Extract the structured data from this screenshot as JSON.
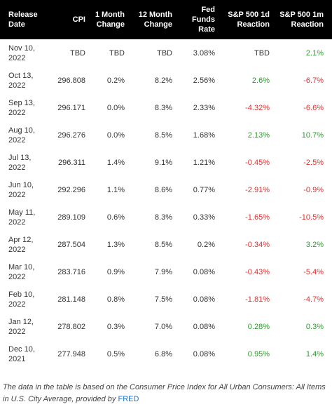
{
  "table": {
    "headers": {
      "release_date": "Release\nDate",
      "cpi": "CPI",
      "change_1m": "1 Month\nChange",
      "change_12m": "12 Month\nChange",
      "fed_rate": "Fed\nFunds\nRate",
      "sp_1d": "S&P 500 1d\nReaction",
      "sp_1m": "S&P 500 1m\nReaction"
    },
    "rows": [
      {
        "date": "Nov 10,\n2022",
        "cpi": "TBD",
        "m1": "TBD",
        "m12": "TBD",
        "fed": "3.08%",
        "sp1d": "TBD",
        "sp1m": "2.1%"
      },
      {
        "date": "Oct 13,\n2022",
        "cpi": "296.808",
        "m1": "0.2%",
        "m12": "8.2%",
        "fed": "2.56%",
        "sp1d": "2.6%",
        "sp1m": "-6.7%"
      },
      {
        "date": "Sep 13,\n2022",
        "cpi": "296.171",
        "m1": "0.0%",
        "m12": "8.3%",
        "fed": "2.33%",
        "sp1d": "-4.32%",
        "sp1m": "-6.6%"
      },
      {
        "date": "Aug 10,\n2022",
        "cpi": "296.276",
        "m1": "0.0%",
        "m12": "8.5%",
        "fed": "1.68%",
        "sp1d": "2.13%",
        "sp1m": "10.7%"
      },
      {
        "date": "Jul 13,\n2022",
        "cpi": "296.311",
        "m1": "1.4%",
        "m12": "9.1%",
        "fed": "1.21%",
        "sp1d": "-0.45%",
        "sp1m": "-2.5%"
      },
      {
        "date": "Jun 10,\n2022",
        "cpi": "292.296",
        "m1": "1.1%",
        "m12": "8.6%",
        "fed": "0.77%",
        "sp1d": "-2.91%",
        "sp1m": "-0.9%"
      },
      {
        "date": "May 11,\n2022",
        "cpi": "289.109",
        "m1": "0.6%",
        "m12": "8.3%",
        "fed": "0.33%",
        "sp1d": "-1.65%",
        "sp1m": "-10.5%"
      },
      {
        "date": "Apr 12,\n2022",
        "cpi": "287.504",
        "m1": "1.3%",
        "m12": "8.5%",
        "fed": "0.2%",
        "sp1d": "-0.34%",
        "sp1m": "3.2%"
      },
      {
        "date": "Mar 10,\n2022",
        "cpi": "283.716",
        "m1": "0.9%",
        "m12": "7.9%",
        "fed": "0.08%",
        "sp1d": "-0.43%",
        "sp1m": "-5.4%"
      },
      {
        "date": "Feb 10,\n2022",
        "cpi": "281.148",
        "m1": "0.8%",
        "m12": "7.5%",
        "fed": "0.08%",
        "sp1d": "-1.81%",
        "sp1m": "-4.7%"
      },
      {
        "date": "Jan 12,\n2022",
        "cpi": "278.802",
        "m1": "0.3%",
        "m12": "7.0%",
        "fed": "0.08%",
        "sp1d": "0.28%",
        "sp1m": "0.3%"
      },
      {
        "date": "Dec 10,\n2021",
        "cpi": "277.948",
        "m1": "0.5%",
        "m12": "6.8%",
        "fed": "0.08%",
        "sp1d": "0.95%",
        "sp1m": "1.4%"
      }
    ]
  },
  "caption": {
    "text": "The data in the table is based on the Consumer Price Index for All Urban Consumers: All Items in U.S. City Average, provided by ",
    "link_label": "FRED"
  },
  "colors": {
    "header_bg": "#000000",
    "header_text": "#ffffff",
    "positive": "#2a9a2a",
    "negative": "#e03030",
    "link": "#1a73c8"
  }
}
